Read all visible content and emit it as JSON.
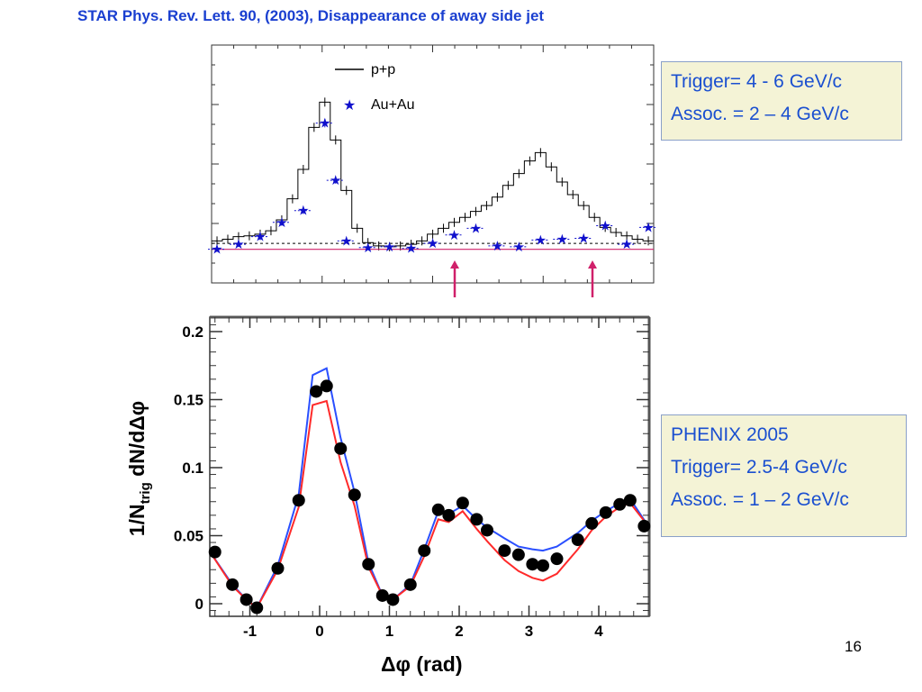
{
  "slide": {
    "title": "STAR Phys. Rev. Lett. 90,  (2003), Disappearance of away side jet",
    "page_number": "16"
  },
  "box_star": {
    "line1": "Trigger= 4 - 6 GeV/c",
    "line2": "Assoc. = 2 – 4 GeV/c"
  },
  "box_phenix": {
    "line1": "PHENIX 2005",
    "line2": "Trigger= 2.5-4 GeV/c",
    "line3": "Assoc. = 1 – 2 GeV/c"
  },
  "colors": {
    "accent_blue": "#1a3fd0",
    "arrow_magenta": "#d0206a",
    "box_fill": "#f4f3d6",
    "series_blue": "#2a4fff",
    "series_red": "#ff2a2a",
    "au_star": "#1010cc"
  },
  "chart_data": [
    {
      "type": "line",
      "title": "",
      "xlabel": "",
      "ylabel": "",
      "legend_placement": "top-center",
      "series": [
        {
          "name": "p+p",
          "style": "step",
          "x": [
            -1.571,
            -1.414,
            -1.257,
            -1.1,
            -0.942,
            -0.785,
            -0.628,
            -0.471,
            -0.314,
            -0.157,
            0.0,
            0.157,
            0.314,
            0.471,
            0.628,
            0.785,
            0.942,
            1.1,
            1.257,
            1.414,
            1.571,
            1.728,
            1.885,
            2.042,
            2.199,
            2.356,
            2.513,
            2.67,
            2.827,
            2.985,
            3.142,
            3.299,
            3.456,
            3.613,
            3.77,
            3.927,
            4.084,
            4.241,
            4.398,
            4.555,
            4.712
          ],
          "values": [
            0.01,
            0.012,
            0.015,
            0.016,
            0.018,
            0.022,
            0.035,
            0.06,
            0.095,
            0.145,
            0.175,
            0.13,
            0.07,
            0.025,
            0.008,
            0.004,
            0.003,
            0.004,
            0.006,
            0.01,
            0.018,
            0.025,
            0.032,
            0.038,
            0.045,
            0.052,
            0.062,
            0.076,
            0.09,
            0.105,
            0.115,
            0.098,
            0.08,
            0.065,
            0.052,
            0.038,
            0.026,
            0.02,
            0.016,
            0.012,
            0.01
          ]
        },
        {
          "name": "Au+Au",
          "style": "markers",
          "x": [
            -1.571,
            -1.257,
            -0.942,
            -0.628,
            -0.314,
            0.0,
            0.157,
            0.314,
            0.628,
            0.942,
            1.257,
            1.571,
            1.885,
            2.199,
            2.513,
            2.827,
            3.142,
            3.456,
            3.77,
            4.084,
            4.398,
            4.712
          ],
          "values": [
            0.0,
            0.006,
            0.015,
            0.032,
            0.046,
            0.15,
            0.082,
            0.01,
            0.002,
            0.003,
            0.001,
            0.007,
            0.017,
            0.025,
            0.004,
            0.003,
            0.011,
            0.012,
            0.013,
            0.028,
            0.006,
            0.026
          ],
          "errors": [
            0.003,
            0.003,
            0.004,
            0.004,
            0.004,
            0.005,
            0.004,
            0.003,
            0.003,
            0.003,
            0.003,
            0.003,
            0.003,
            0.003,
            0.003,
            0.003,
            0.003,
            0.003,
            0.003,
            0.003,
            0.003,
            0.003
          ]
        }
      ],
      "reference_lines": [
        0.0,
        0.007
      ]
    },
    {
      "type": "line",
      "title": "",
      "xlabel": "Δφ (rad)",
      "ylabel": "1/N_trig dN/dΔφ",
      "xlim": [
        -1.57,
        4.71
      ],
      "ylim": [
        -0.01,
        0.21
      ],
      "x_ticks": [
        "-1",
        "0",
        "1",
        "2",
        "3",
        "4"
      ],
      "y_ticks": [
        "0",
        "0.05",
        "0.1",
        "0.15",
        "0.2"
      ],
      "series": [
        {
          "name": "",
          "style": "markers",
          "x": [
            -1.5,
            -1.25,
            -1.05,
            -0.9,
            -0.6,
            -0.3,
            -0.05,
            0.1,
            0.3,
            0.5,
            0.7,
            0.9,
            1.05,
            1.3,
            1.5,
            1.7,
            1.85,
            2.05,
            2.25,
            2.4,
            2.65,
            2.85,
            3.05,
            3.2,
            3.4,
            3.7,
            3.9,
            4.1,
            4.3,
            4.45,
            4.65
          ],
          "values": [
            0.038,
            0.014,
            0.003,
            -0.003,
            0.026,
            0.076,
            0.156,
            0.16,
            0.114,
            0.08,
            0.029,
            0.006,
            0.003,
            0.014,
            0.039,
            0.069,
            0.065,
            0.074,
            0.062,
            0.054,
            0.039,
            0.036,
            0.029,
            0.028,
            0.033,
            0.047,
            0.059,
            0.067,
            0.073,
            0.076,
            0.057
          ]
        },
        {
          "name": "",
          "style": "line",
          "x": [
            -1.57,
            -1.25,
            -1.05,
            -0.9,
            -0.6,
            -0.3,
            -0.1,
            0.1,
            0.3,
            0.5,
            0.7,
            0.9,
            1.05,
            1.3,
            1.5,
            1.7,
            1.85,
            2.05,
            2.25,
            2.4,
            2.65,
            2.85,
            3.05,
            3.2,
            3.4,
            3.7,
            3.9,
            4.1,
            4.3,
            4.45,
            4.71
          ],
          "values": [
            0.038,
            0.014,
            0.003,
            -0.003,
            0.028,
            0.08,
            0.168,
            0.173,
            0.122,
            0.082,
            0.03,
            0.006,
            0.003,
            0.014,
            0.04,
            0.068,
            0.066,
            0.072,
            0.062,
            0.056,
            0.048,
            0.042,
            0.04,
            0.039,
            0.042,
            0.052,
            0.061,
            0.068,
            0.074,
            0.077,
            0.057
          ]
        },
        {
          "name": "",
          "style": "line",
          "x": [
            -1.57,
            -1.25,
            -1.05,
            -0.9,
            -0.6,
            -0.3,
            -0.1,
            0.1,
            0.3,
            0.5,
            0.7,
            0.9,
            1.05,
            1.3,
            1.5,
            1.7,
            1.85,
            2.05,
            2.25,
            2.4,
            2.65,
            2.85,
            3.05,
            3.2,
            3.4,
            3.7,
            3.9,
            4.1,
            4.3,
            4.45,
            4.71
          ],
          "values": [
            0.038,
            0.013,
            0.003,
            -0.003,
            0.025,
            0.071,
            0.146,
            0.149,
            0.104,
            0.072,
            0.027,
            0.006,
            0.003,
            0.013,
            0.035,
            0.062,
            0.06,
            0.068,
            0.055,
            0.046,
            0.032,
            0.024,
            0.019,
            0.017,
            0.022,
            0.04,
            0.054,
            0.064,
            0.071,
            0.074,
            0.057
          ]
        }
      ]
    }
  ]
}
